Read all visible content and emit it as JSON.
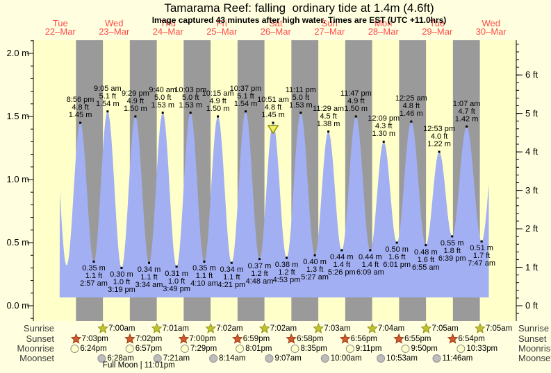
{
  "title": "Tamarama Reef: falling  ordinary tide at 1.4m (4.6ft)",
  "subtitle": "Image captured 43 minutes after high water. Times are EST (UTC +11.0hrs)",
  "colors": {
    "page_bg": "#ffffdf",
    "plot_day": "#ffffc9",
    "plot_night": "#9a9a9a",
    "tide_fill": "#a2aff2",
    "axis": "#000000",
    "day_label": "#ff4a4a",
    "sunrise_star_fill": "#c2c22e",
    "sunrise_star_border": "#8f8f1d",
    "sunset_star_fill": "#cf5a2d",
    "sunset_star_border": "#9c3d1a",
    "moonrise_fill": "#ffffc9",
    "moonset_fill": "#bdbdbd",
    "moon_border": "#8f8f8f",
    "marker_fill": "#f0f066",
    "marker_border": "#8f8f00"
  },
  "chart_data": {
    "type": "area",
    "title": "Tamarama Reef tide curve",
    "ylabel_left": "metres",
    "ylabel_right": "feet",
    "ylim_m": [
      0,
      2.1
    ],
    "grid": false,
    "days": [
      {
        "name": "Tue",
        "date": "22–Mar"
      },
      {
        "name": "Wed",
        "date": "23–Mar"
      },
      {
        "name": "Thu",
        "date": "24–Mar"
      },
      {
        "name": "Fri",
        "date": "25–Mar"
      },
      {
        "name": "Sat",
        "date": "26–Mar"
      },
      {
        "name": "Sun",
        "date": "27–Mar"
      },
      {
        "name": "Mon",
        "date": "28–Mar"
      },
      {
        "name": "Tue",
        "date": "29–Mar"
      },
      {
        "name": "Wed",
        "date": "30–Mar"
      }
    ],
    "axis_left_ticks": [
      "2.0 m",
      "1.5 m",
      "1.0 m",
      "0.5 m",
      "0.0 m"
    ],
    "axis_right_ticks": [
      "6 ft",
      "5 ft",
      "4 ft",
      "3 ft",
      "2 ft",
      "1 ft",
      "0 ft"
    ],
    "events": [
      {
        "type": "high",
        "day": 0,
        "time": "8:56 pm",
        "ft": "4.8 ft",
        "m": "1.45 m"
      },
      {
        "type": "low",
        "day": 1,
        "time": "2:57 am",
        "ft": "1.1 ft",
        "m": "0.35 m"
      },
      {
        "type": "high",
        "day": 1,
        "time": "9:05 am",
        "ft": "5.1 ft",
        "m": "1.54 m"
      },
      {
        "type": "low",
        "day": 1,
        "time": "3:19 pm",
        "ft": "1.0 ft",
        "m": "0.30 m"
      },
      {
        "type": "high",
        "day": 1,
        "time": "9:29 pm",
        "ft": "4.9 ft",
        "m": "1.50 m"
      },
      {
        "type": "low",
        "day": 2,
        "time": "3:34 am",
        "ft": "1.1 ft",
        "m": "0.34 m"
      },
      {
        "type": "high",
        "day": 2,
        "time": "9:40 am",
        "ft": "5.0 ft",
        "m": "1.53 m"
      },
      {
        "type": "low",
        "day": 2,
        "time": "3:49 pm",
        "ft": "1.0 ft",
        "m": "0.31 m"
      },
      {
        "type": "high",
        "day": 2,
        "time": "10:03 pm",
        "ft": "5.0 ft",
        "m": "1.53 m"
      },
      {
        "type": "low",
        "day": 3,
        "time": "4:10 am",
        "ft": "1.1 ft",
        "m": "0.35 m"
      },
      {
        "type": "high",
        "day": 3,
        "time": "10:15 am",
        "ft": "4.9 ft",
        "m": "1.50 m"
      },
      {
        "type": "low",
        "day": 3,
        "time": "4:21 pm",
        "ft": "1.1 ft",
        "m": "0.34 m"
      },
      {
        "type": "high",
        "day": 3,
        "time": "10:37 pm",
        "ft": "5.1 ft",
        "m": "1.54 m"
      },
      {
        "type": "low",
        "day": 4,
        "time": "4:48 am",
        "ft": "1.2 ft",
        "m": "0.37 m"
      },
      {
        "type": "high",
        "day": 4,
        "time": "10:51 am",
        "ft": "4.8 ft",
        "m": "1.45 m",
        "current": true
      },
      {
        "type": "low",
        "day": 4,
        "time": "4:53 pm",
        "ft": "1.2 ft",
        "m": "0.38 m"
      },
      {
        "type": "high",
        "day": 4,
        "time": "11:11 pm",
        "ft": "5.0 ft",
        "m": "1.53 m"
      },
      {
        "type": "low",
        "day": 5,
        "time": "5:27 am",
        "ft": "1.3 ft",
        "m": "0.40 m"
      },
      {
        "type": "high",
        "day": 5,
        "time": "11:29 am",
        "ft": "4.5 ft",
        "m": "1.38 m"
      },
      {
        "type": "low",
        "day": 5,
        "time": "5:26 pm",
        "ft": "1.4 ft",
        "m": "0.44 m"
      },
      {
        "type": "high",
        "day": 5,
        "time": "11:47 pm",
        "ft": "4.9 ft",
        "m": "1.50 m"
      },
      {
        "type": "low",
        "day": 6,
        "time": "6:09 am",
        "ft": "1.4 ft",
        "m": "0.44 m"
      },
      {
        "type": "high",
        "day": 6,
        "time": "12:09 pm",
        "ft": "4.3 ft",
        "m": "1.30 m"
      },
      {
        "type": "low",
        "day": 6,
        "time": "6:01 pm",
        "ft": "1.6 ft",
        "m": "0.50 m"
      },
      {
        "type": "high",
        "day": 7,
        "time": "12:25 am",
        "ft": "4.8 ft",
        "m": "1.46 m"
      },
      {
        "type": "low",
        "day": 7,
        "time": "6:55 am",
        "ft": "1.6 ft",
        "m": "0.48 m"
      },
      {
        "type": "high",
        "day": 7,
        "time": "12:53 pm",
        "ft": "4.0 ft",
        "m": "1.22 m"
      },
      {
        "type": "low",
        "day": 7,
        "time": "6:39 pm",
        "ft": "1.8 ft",
        "m": "0.55 m"
      },
      {
        "type": "high",
        "day": 8,
        "time": "1:07 am",
        "ft": "4.7 ft",
        "m": "1.42 m"
      },
      {
        "type": "low",
        "day": 8,
        "time": "7:47 am",
        "ft": "1.7 ft",
        "m": "0.51 m"
      }
    ]
  },
  "sun_moon": {
    "rows": [
      {
        "id": "sunrise",
        "label": "Sunrise",
        "icon": "star",
        "events": [
          {
            "day": 1,
            "time": "7:00am"
          },
          {
            "day": 2,
            "time": "7:01am"
          },
          {
            "day": 3,
            "time": "7:02am"
          },
          {
            "day": 4,
            "time": "7:02am"
          },
          {
            "day": 5,
            "time": "7:03am"
          },
          {
            "day": 6,
            "time": "7:04am"
          },
          {
            "day": 7,
            "time": "7:05am"
          },
          {
            "day": 8,
            "time": "7:05am"
          }
        ]
      },
      {
        "id": "sunset",
        "label": "Sunset",
        "icon": "star",
        "events": [
          {
            "day": 0,
            "time": "7:03pm"
          },
          {
            "day": 1,
            "time": "7:02pm"
          },
          {
            "day": 2,
            "time": "7:00pm"
          },
          {
            "day": 3,
            "time": "6:59pm"
          },
          {
            "day": 4,
            "time": "6:58pm"
          },
          {
            "day": 5,
            "time": "6:56pm"
          },
          {
            "day": 6,
            "time": "6:55pm"
          },
          {
            "day": 7,
            "time": "6:54pm"
          }
        ]
      },
      {
        "id": "moonrise",
        "label": "Moonrise",
        "icon": "circle",
        "events": [
          {
            "day": 0,
            "time": "6:24pm"
          },
          {
            "day": 1,
            "time": "6:57pm"
          },
          {
            "day": 2,
            "time": "7:29pm"
          },
          {
            "day": 3,
            "time": "8:01pm"
          },
          {
            "day": 4,
            "time": "8:35pm"
          },
          {
            "day": 5,
            "time": "9:11pm"
          },
          {
            "day": 6,
            "time": "9:50pm"
          },
          {
            "day": 7,
            "time": "10:33pm"
          }
        ]
      },
      {
        "id": "moonset",
        "label": "Moonset",
        "icon": "circle",
        "events": [
          {
            "day": 1,
            "time": "6:28am"
          },
          {
            "day": 2,
            "time": "7:21am"
          },
          {
            "day": 3,
            "time": "8:14am"
          },
          {
            "day": 4,
            "time": "9:07am"
          },
          {
            "day": 5,
            "time": "10:00am"
          },
          {
            "day": 6,
            "time": "10:53am"
          },
          {
            "day": 7,
            "time": "11:46am"
          }
        ]
      }
    ],
    "footer": {
      "text": "Full Moon | 11:01pm",
      "day": 1,
      "time": "11:01pm"
    }
  }
}
